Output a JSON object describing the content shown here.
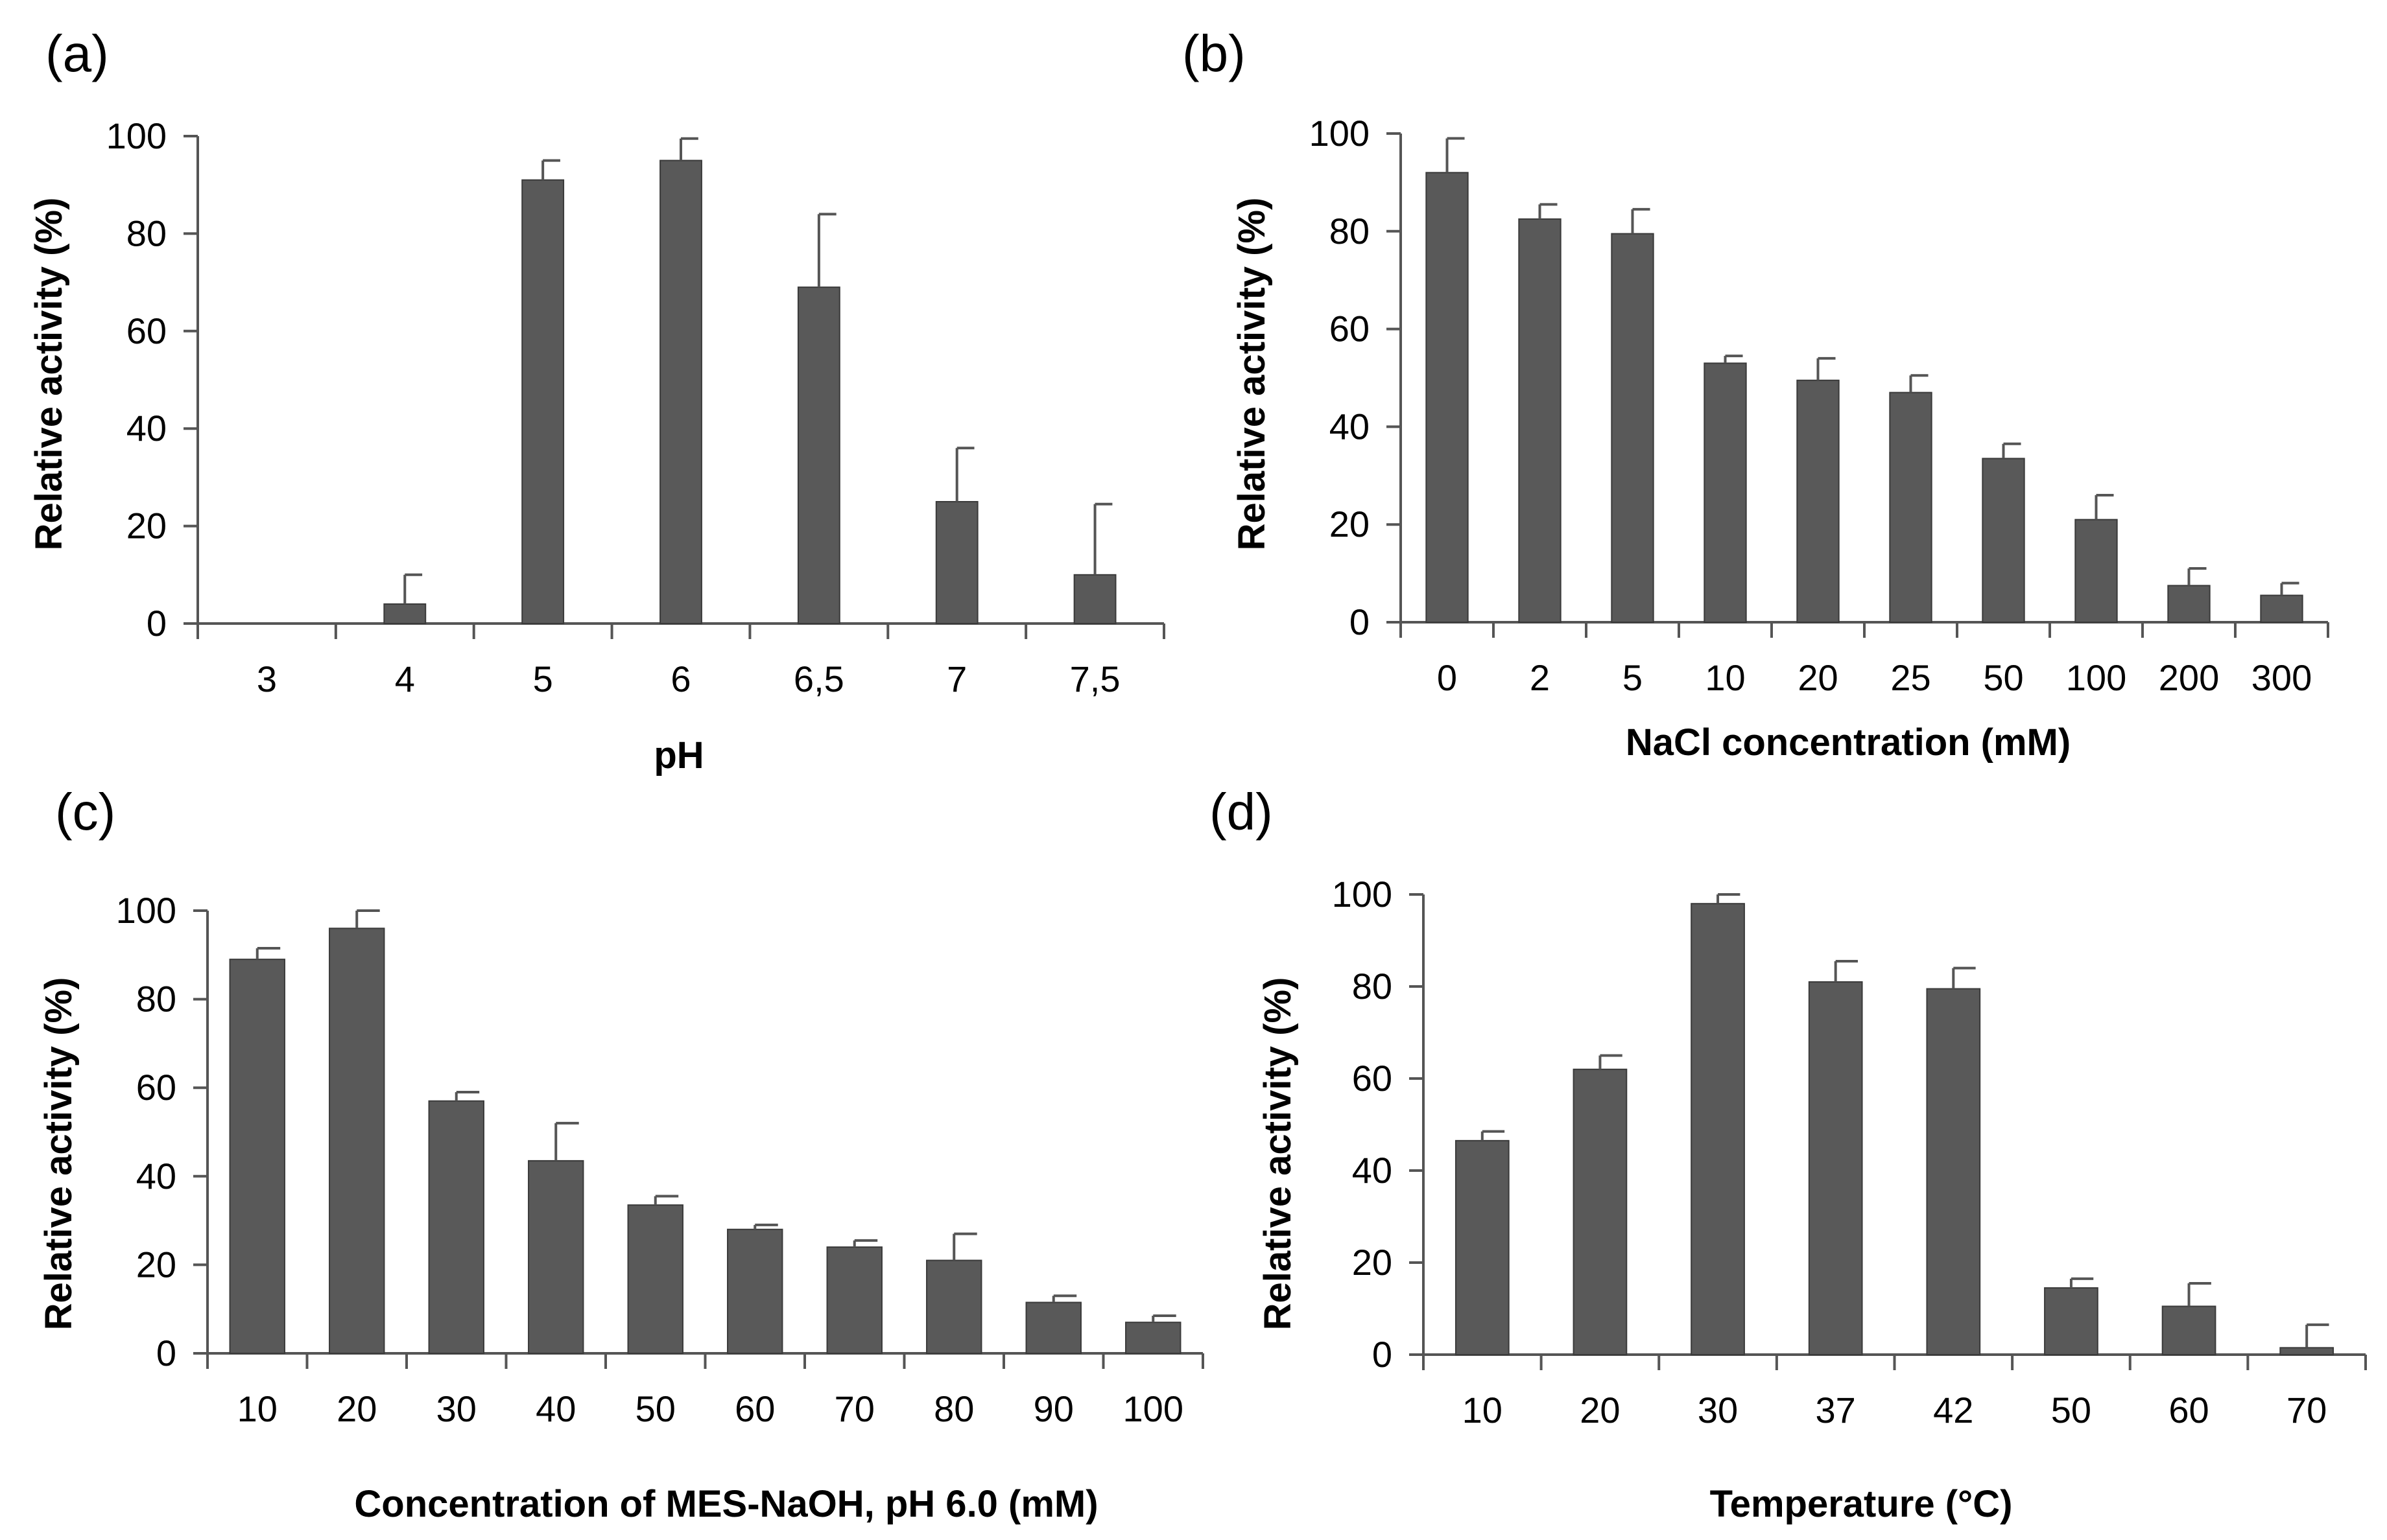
{
  "chart_data": [
    {
      "type": "bar",
      "panel_label": "(a)",
      "title": "",
      "xlabel": "pH",
      "ylabel": "Relative activity (%)",
      "ylim": [
        0,
        100
      ],
      "yticks": [
        "0",
        "20",
        "40",
        "60",
        "80",
        "100"
      ],
      "categories": [
        "3",
        "4",
        "5",
        "6",
        "6,5",
        "7",
        "7,5"
      ],
      "values": [
        0,
        4,
        91,
        95,
        69,
        25,
        10
      ],
      "errors": [
        0,
        6,
        4,
        4.5,
        15,
        11,
        14.5
      ],
      "grid": false,
      "bar_color": "#595959"
    },
    {
      "type": "bar",
      "panel_label": "(b)",
      "title": "",
      "xlabel": "NaCl concentration (mM)",
      "ylabel": "Relative activity (%)",
      "ylim": [
        0,
        100
      ],
      "yticks": [
        "0",
        "20",
        "40",
        "60",
        "80",
        "100"
      ],
      "categories": [
        "0",
        "2",
        "5",
        "10",
        "20",
        "25",
        "50",
        "100",
        "200",
        "300"
      ],
      "values": [
        92,
        82.5,
        79.5,
        53,
        49.5,
        47,
        33.5,
        21,
        7.5,
        5.5
      ],
      "errors": [
        7,
        3,
        5,
        1.5,
        4.5,
        3.5,
        3,
        5,
        3.5,
        2.5
      ],
      "grid": false,
      "bar_color": "#595959"
    },
    {
      "type": "bar",
      "panel_label": "(c)",
      "title": "",
      "xlabel": "Concentration of MES-NaOH, pH 6.0 (mM)",
      "ylabel": "Relative activity (%)",
      "ylim": [
        0,
        100
      ],
      "yticks": [
        "0",
        "20",
        "40",
        "60",
        "80",
        "100"
      ],
      "categories": [
        "10",
        "20",
        "30",
        "40",
        "50",
        "60",
        "70",
        "80",
        "90",
        "100"
      ],
      "values": [
        89,
        96,
        57,
        43.5,
        33.5,
        28,
        24,
        21,
        11.5,
        7
      ],
      "errors": [
        2.5,
        4,
        2,
        8.5,
        2,
        1,
        1.5,
        6,
        1.5,
        1.5
      ],
      "grid": false,
      "bar_color": "#595959"
    },
    {
      "type": "bar",
      "panel_label": "(d)",
      "title": "",
      "xlabel": "Temperature (°C)",
      "ylabel": "Relative activity (%)",
      "ylim": [
        0,
        100
      ],
      "yticks": [
        "0",
        "20",
        "40",
        "60",
        "80",
        "100"
      ],
      "categories": [
        "10",
        "20",
        "30",
        "37",
        "42",
        "50",
        "60",
        "70"
      ],
      "values": [
        46.5,
        62,
        98,
        81,
        79.5,
        14.5,
        10.5,
        1.5
      ],
      "errors": [
        2,
        3,
        2,
        4.5,
        4.5,
        2,
        5,
        5
      ],
      "grid": false,
      "bar_color": "#595959"
    }
  ]
}
